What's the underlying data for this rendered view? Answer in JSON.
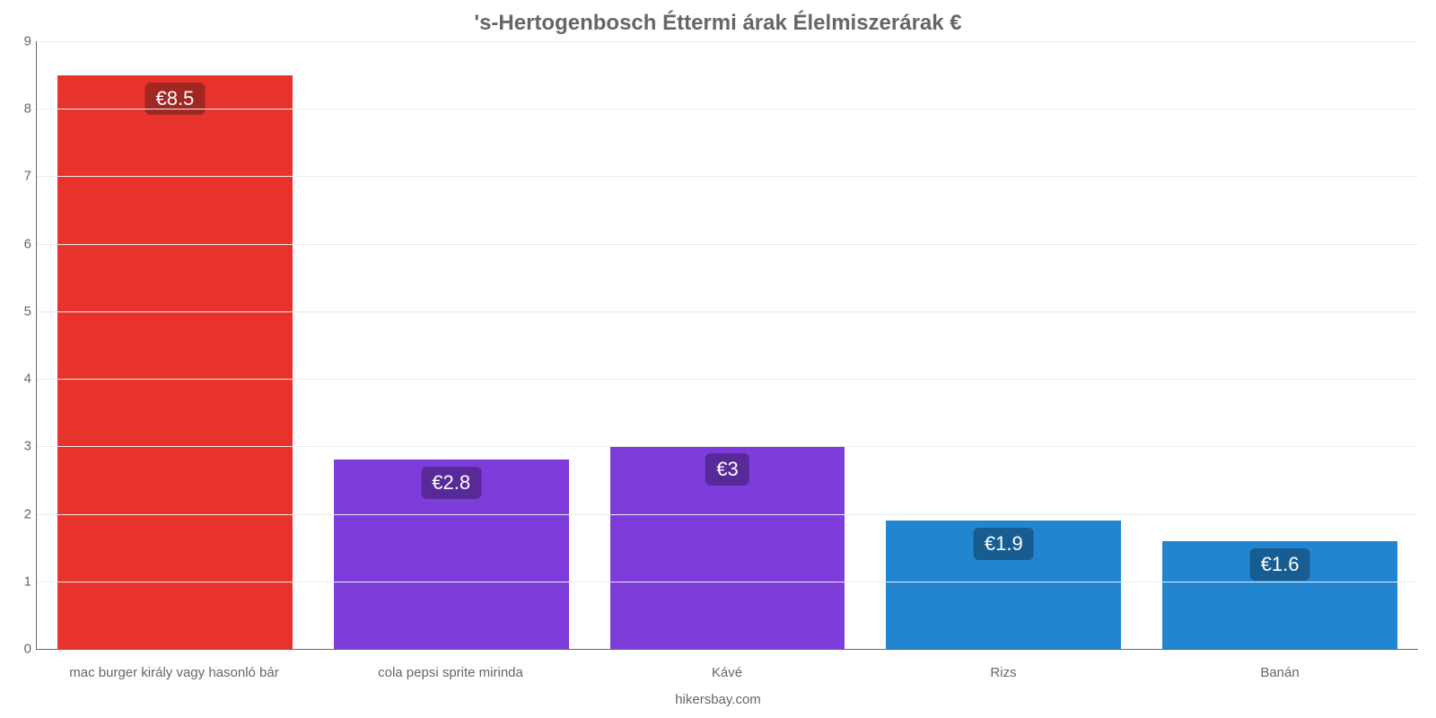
{
  "chart": {
    "type": "bar",
    "title": "'s-Hertogenbosch Éttermi árak Élelmiszerárak €",
    "subtitle": "hikersbay.com",
    "title_color": "#666666",
    "title_fontsize": 24,
    "title_fontweight": 700,
    "label_color": "#666666",
    "label_fontsize": 15,
    "background_color": "#ffffff",
    "grid_color": "#ececec",
    "axis_color": "#666666",
    "ylim": [
      0,
      9
    ],
    "ytick_step": 1,
    "bar_width_pct": 85,
    "categories": [
      "mac burger király vagy hasonló bár",
      "cola pepsi sprite mirinda",
      "Kávé",
      "Rizs",
      "Banán"
    ],
    "values": [
      8.5,
      2.8,
      3,
      1.9,
      1.6
    ],
    "value_labels": [
      "€8.5",
      "€2.8",
      "€3",
      "€1.9",
      "€1.6"
    ],
    "bar_colors": [
      "#e8332c",
      "#7e3ddb",
      "#7e3ddb",
      "#2185d0",
      "#2185d0"
    ],
    "badge_colors": [
      "#a12722",
      "#582a99",
      "#582a99",
      "#175d92",
      "#175d92"
    ],
    "badge_text_color": "#ffffff",
    "badge_fontsize": 22,
    "badge_radius": 6
  }
}
